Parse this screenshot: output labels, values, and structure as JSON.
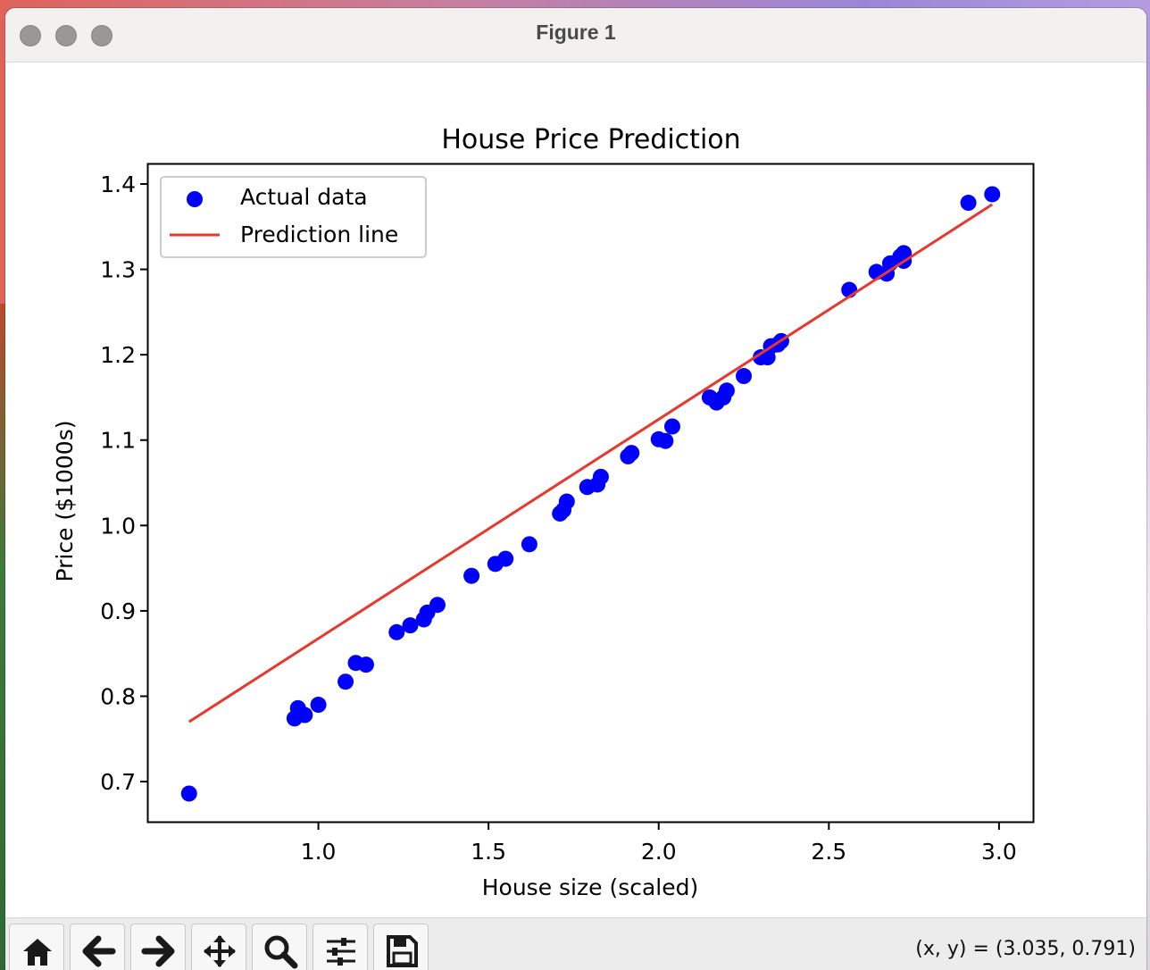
{
  "window": {
    "title": "Figure 1",
    "coordinates": "(x, y) = (3.035, 0.791)"
  },
  "toolbar": {
    "buttons": [
      {
        "icon": "home-icon"
      },
      {
        "icon": "back-arrow-icon"
      },
      {
        "icon": "forward-arrow-icon"
      },
      {
        "icon": "pan-icon"
      },
      {
        "icon": "zoom-icon"
      },
      {
        "icon": "configure-subplots-icon"
      },
      {
        "icon": "save-icon"
      }
    ]
  },
  "chart_data": {
    "type": "scatter",
    "title": "House Price Prediction",
    "xlabel": "House size (scaled)",
    "ylabel": "Price ($1000s)",
    "xlim": [
      0.5,
      3.1
    ],
    "ylim": [
      0.653,
      1.423
    ],
    "xticks": [
      "1.0",
      "1.5",
      "2.0",
      "2.5",
      "3.0"
    ],
    "xtick_values": [
      1.0,
      1.5,
      2.0,
      2.5,
      3.0
    ],
    "yticks": [
      "0.7",
      "0.8",
      "0.9",
      "1.0",
      "1.1",
      "1.2",
      "1.3",
      "1.4"
    ],
    "ytick_values": [
      0.7,
      0.8,
      0.9,
      1.0,
      1.1,
      1.2,
      1.3,
      1.4
    ],
    "grid": false,
    "legend_position": "upper-left",
    "series": [
      {
        "name": "Actual data",
        "kind": "scatter",
        "color": "#0000ff",
        "points": [
          [
            0.62,
            0.686
          ],
          [
            0.93,
            0.774
          ],
          [
            0.94,
            0.786
          ],
          [
            0.96,
            0.778
          ],
          [
            1.0,
            0.79
          ],
          [
            1.08,
            0.817
          ],
          [
            1.11,
            0.839
          ],
          [
            1.14,
            0.837
          ],
          [
            1.23,
            0.875
          ],
          [
            1.27,
            0.883
          ],
          [
            1.31,
            0.89
          ],
          [
            1.32,
            0.898
          ],
          [
            1.35,
            0.907
          ],
          [
            1.45,
            0.941
          ],
          [
            1.52,
            0.955
          ],
          [
            1.55,
            0.961
          ],
          [
            1.62,
            0.978
          ],
          [
            1.71,
            1.014
          ],
          [
            1.72,
            1.018
          ],
          [
            1.73,
            1.028
          ],
          [
            1.79,
            1.045
          ],
          [
            1.82,
            1.048
          ],
          [
            1.83,
            1.057
          ],
          [
            1.91,
            1.081
          ],
          [
            1.92,
            1.085
          ],
          [
            2.0,
            1.101
          ],
          [
            2.02,
            1.099
          ],
          [
            2.04,
            1.116
          ],
          [
            2.15,
            1.15
          ],
          [
            2.17,
            1.144
          ],
          [
            2.19,
            1.15
          ],
          [
            2.2,
            1.158
          ],
          [
            2.25,
            1.175
          ],
          [
            2.3,
            1.197
          ],
          [
            2.32,
            1.197
          ],
          [
            2.33,
            1.21
          ],
          [
            2.35,
            1.212
          ],
          [
            2.36,
            1.216
          ],
          [
            2.56,
            1.276
          ],
          [
            2.64,
            1.297
          ],
          [
            2.67,
            1.295
          ],
          [
            2.68,
            1.307
          ],
          [
            2.71,
            1.315
          ],
          [
            2.72,
            1.31
          ],
          [
            2.72,
            1.319
          ],
          [
            2.91,
            1.378
          ],
          [
            2.98,
            1.388
          ]
        ]
      },
      {
        "name": "Prediction line",
        "kind": "line",
        "color": "#e8372c",
        "points": [
          [
            0.62,
            0.77
          ],
          [
            2.98,
            1.376
          ]
        ]
      }
    ]
  }
}
